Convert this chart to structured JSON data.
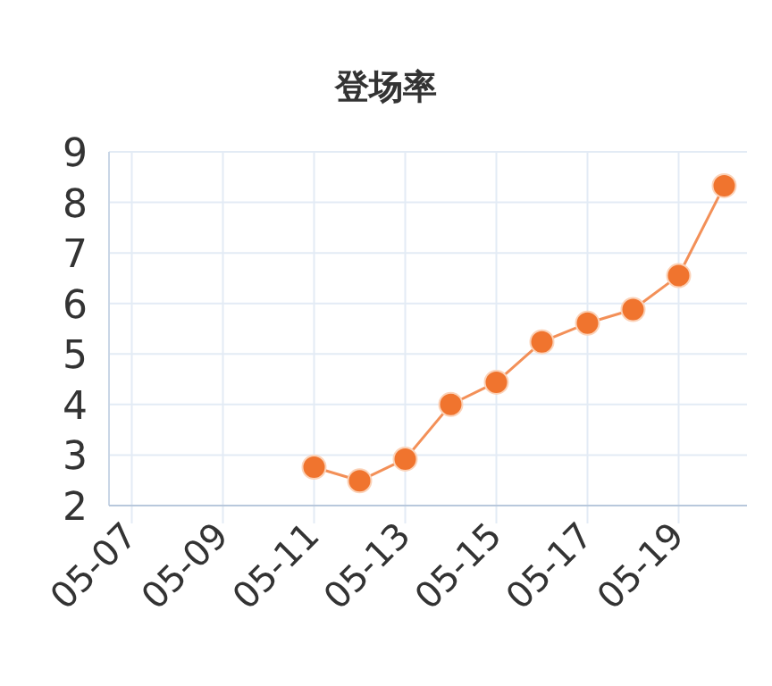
{
  "chart_data": {
    "type": "line",
    "title": "登场率",
    "categories": [
      "05-07",
      null,
      "05-09",
      null,
      "05-11",
      null,
      "05-13",
      null,
      "05-15",
      null,
      "05-17",
      null,
      "05-19",
      null
    ],
    "series": [
      {
        "color": "#f0742e",
        "values": [
          null,
          null,
          null,
          null,
          2.76,
          2.49,
          2.92,
          4.0,
          4.44,
          5.24,
          5.61,
          5.88,
          6.55,
          8.33
        ]
      }
    ],
    "ylim": [
      2,
      9
    ],
    "yticks": [
      2,
      3,
      4,
      5,
      6,
      7,
      8,
      9
    ],
    "grid": true,
    "marker": "circle",
    "line_style": "solid"
  }
}
